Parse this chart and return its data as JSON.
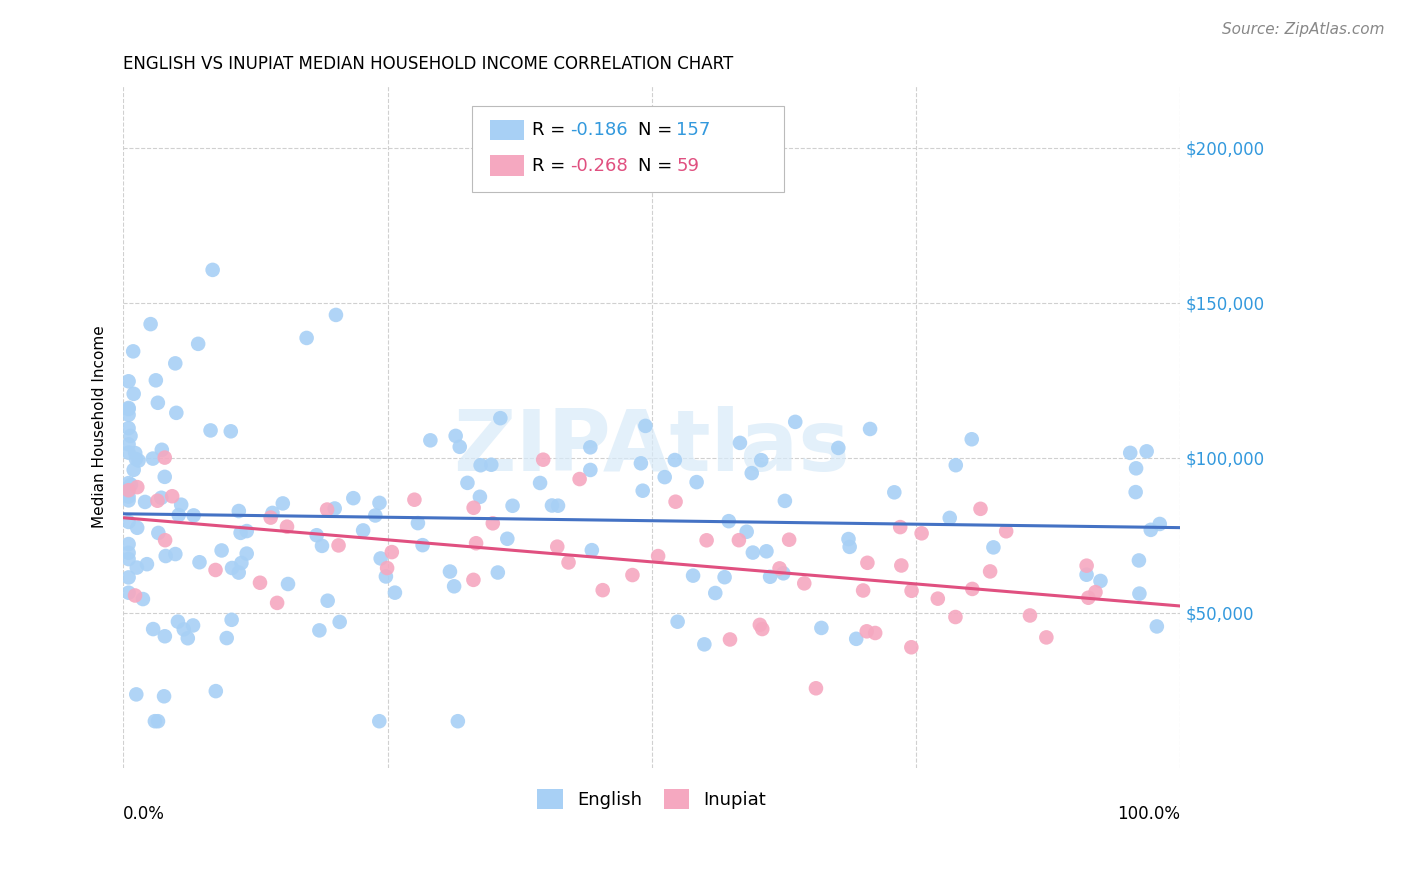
{
  "title": "ENGLISH VS INUPIAT MEDIAN HOUSEHOLD INCOME CORRELATION CHART",
  "source": "Source: ZipAtlas.com",
  "ylabel": "Median Household Income",
  "watermark": "ZIPAtlas",
  "english_R": -0.186,
  "english_N": 157,
  "inupiat_R": -0.268,
  "inupiat_N": 59,
  "english_color": "#a8d0f5",
  "inupiat_color": "#f5a8c0",
  "english_line_color": "#4472c4",
  "inupiat_line_color": "#e05080",
  "background_color": "#ffffff",
  "grid_color": "#d0d0d0",
  "ytick_labels": [
    "$50,000",
    "$100,000",
    "$150,000",
    "$200,000"
  ],
  "ytick_values": [
    50000,
    100000,
    150000,
    200000
  ],
  "xlim": [
    0.0,
    1.0
  ],
  "ylim": [
    0,
    220000
  ],
  "title_fontsize": 12,
  "source_fontsize": 11,
  "axis_label_fontsize": 11,
  "tick_fontsize": 12,
  "legend_fontsize": 13
}
